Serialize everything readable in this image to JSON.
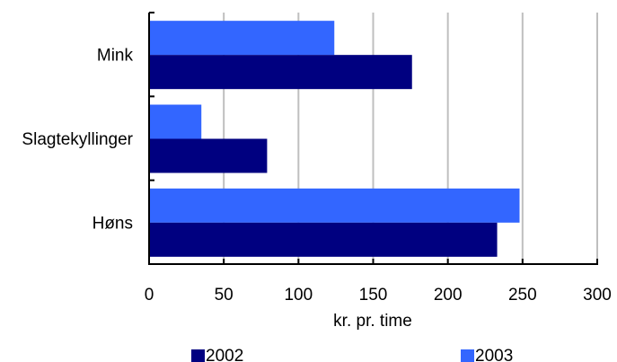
{
  "chart_data": {
    "type": "bar",
    "orientation": "horizontal",
    "categories": [
      "Mink",
      "Slagtekyllinger",
      "Høns"
    ],
    "series": [
      {
        "name": "2002",
        "values": [
          176,
          79,
          233
        ],
        "color": "#000080"
      },
      {
        "name": "2003",
        "values": [
          124,
          35,
          248
        ],
        "color": "#3366FF"
      }
    ],
    "xlabel": "kr. pr. time",
    "xlim": [
      0,
      300
    ],
    "xticks": [
      0,
      50,
      100,
      150,
      200,
      250,
      300
    ],
    "grid": true,
    "grid_color": "#BFBFBF",
    "legend": "bottom"
  }
}
